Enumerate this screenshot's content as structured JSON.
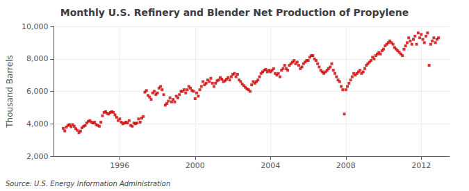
{
  "chart_data": {
    "type": "scatter",
    "title": "Monthly U.S. Refinery and Blender Net Production of Propylene",
    "ylabel": "Thousand Barrels",
    "source": "Source: U.S. Energy Information Administration",
    "color": "#cc0000",
    "marker": "square",
    "grid": true,
    "xlim": [
      1992.5,
      2013.5
    ],
    "xticks": [
      1996,
      2000,
      2004,
      2008,
      2012
    ],
    "ylim": [
      2000,
      10000
    ],
    "yticks": [
      {
        "value": 2000,
        "label": "2,000"
      },
      {
        "value": 4000,
        "label": "4,000"
      },
      {
        "value": 6000,
        "label": "6,000"
      },
      {
        "value": 8000,
        "label": "8,000"
      },
      {
        "value": 10000,
        "label": "10,000"
      }
    ],
    "x": [
      1993,
      1993.0833333333333,
      1993.1666666666667,
      1993.25,
      1993.3333333333333,
      1993.4166666666667,
      1993.5,
      1993.5833333333333,
      1993.6666666666667,
      1993.75,
      1993.8333333333333,
      1993.9166666666667,
      1994,
      1994.0833333333333,
      1994.1666666666667,
      1994.25,
      1994.3333333333333,
      1994.4166666666667,
      1994.5,
      1994.5833333333333,
      1994.6666666666667,
      1994.75,
      1994.8333333333333,
      1994.9166666666667,
      1995,
      1995.0833333333333,
      1995.1666666666667,
      1995.25,
      1995.3333333333333,
      1995.4166666666667,
      1995.5,
      1995.5833333333333,
      1995.6666666666667,
      1995.75,
      1995.8333333333333,
      1995.9166666666667,
      1996,
      1996.0833333333333,
      1996.1666666666667,
      1996.25,
      1996.3333333333333,
      1996.4166666666667,
      1996.5,
      1996.5833333333333,
      1996.6666666666667,
      1996.75,
      1996.8333333333333,
      1996.9166666666667,
      1997,
      1997.0833333333333,
      1997.1666666666667,
      1997.25,
      1997.3333333333333,
      1997.4166666666667,
      1997.5,
      1997.5833333333333,
      1997.6666666666667,
      1997.75,
      1997.8333333333333,
      1997.9166666666667,
      1998,
      1998.0833333333333,
      1998.1666666666667,
      1998.25,
      1998.3333333333333,
      1998.4166666666667,
      1998.5,
      1998.5833333333333,
      1998.6666666666667,
      1998.75,
      1998.8333333333333,
      1998.9166666666667,
      1999,
      1999.0833333333333,
      1999.1666666666667,
      1999.25,
      1999.3333333333333,
      1999.4166666666667,
      1999.5,
      1999.5833333333333,
      1999.6666666666667,
      1999.75,
      1999.8333333333333,
      1999.9166666666667,
      2000,
      2000.0833333333333,
      2000.1666666666667,
      2000.25,
      2000.3333333333333,
      2000.4166666666667,
      2000.5,
      2000.5833333333333,
      2000.6666666666667,
      2000.75,
      2000.8333333333333,
      2000.9166666666667,
      2001,
      2001.0833333333333,
      2001.1666666666667,
      2001.25,
      2001.3333333333333,
      2001.4166666666667,
      2001.5,
      2001.5833333333333,
      2001.6666666666667,
      2001.75,
      2001.8333333333333,
      2001.9166666666667,
      2002,
      2002.0833333333333,
      2002.1666666666667,
      2002.25,
      2002.3333333333333,
      2002.4166666666667,
      2002.5,
      2002.5833333333333,
      2002.6666666666667,
      2002.75,
      2002.8333333333333,
      2002.9166666666667,
      2003,
      2003.0833333333333,
      2003.1666666666667,
      2003.25,
      2003.3333333333333,
      2003.4166666666667,
      2003.5,
      2003.5833333333333,
      2003.6666666666667,
      2003.75,
      2003.8333333333333,
      2003.9166666666667,
      2004,
      2004.0833333333333,
      2004.1666666666667,
      2004.25,
      2004.3333333333333,
      2004.4166666666667,
      2004.5,
      2004.5833333333333,
      2004.6666666666667,
      2004.75,
      2004.8333333333333,
      2004.9166666666667,
      2005,
      2005.0833333333333,
      2005.1666666666667,
      2005.25,
      2005.3333333333333,
      2005.4166666666667,
      2005.5,
      2005.5833333333333,
      2005.6666666666667,
      2005.75,
      2005.8333333333333,
      2005.9166666666667,
      2006,
      2006.0833333333333,
      2006.1666666666667,
      2006.25,
      2006.3333333333333,
      2006.4166666666667,
      2006.5,
      2006.5833333333333,
      2006.6666666666667,
      2006.75,
      2006.8333333333333,
      2006.9166666666667,
      2007,
      2007.0833333333333,
      2007.1666666666667,
      2007.25,
      2007.3333333333333,
      2007.4166666666667,
      2007.5,
      2007.5833333333333,
      2007.6666666666667,
      2007.75,
      2007.8333333333333,
      2007.9166666666667,
      2008,
      2008.0833333333333,
      2008.1666666666667,
      2008.25,
      2008.3333333333333,
      2008.4166666666667,
      2008.5,
      2008.5833333333333,
      2008.6666666666667,
      2008.75,
      2008.8333333333333,
      2008.9166666666667,
      2009,
      2009.0833333333333,
      2009.1666666666667,
      2009.25,
      2009.3333333333333,
      2009.4166666666667,
      2009.5,
      2009.5833333333333,
      2009.6666666666667,
      2009.75,
      2009.8333333333333,
      2009.9166666666667,
      2010,
      2010.0833333333333,
      2010.1666666666667,
      2010.25,
      2010.3333333333333,
      2010.4166666666667,
      2010.5,
      2010.5833333333333,
      2010.6666666666667,
      2010.75,
      2010.8333333333333,
      2010.9166666666667,
      2011,
      2011.0833333333333,
      2011.1666666666667,
      2011.25,
      2011.3333333333333,
      2011.4166666666667,
      2011.5,
      2011.5833333333333,
      2011.6666666666667,
      2011.75,
      2011.8333333333333,
      2011.9166666666667,
      2012,
      2012.0833333333333,
      2012.1666666666667,
      2012.25,
      2012.3333333333333,
      2012.4166666666667,
      2012.5,
      2012.5833333333333,
      2012.6666666666667,
      2012.75,
      2012.8333333333333,
      2012.9166666666667
    ],
    "values": [
      3720,
      3560,
      3800,
      3900,
      3950,
      3820,
      3950,
      3850,
      3700,
      3600,
      3450,
      3550,
      3750,
      3850,
      3900,
      4050,
      4150,
      4200,
      4100,
      4050,
      4100,
      3950,
      3900,
      3850,
      4100,
      4500,
      4700,
      4750,
      4650,
      4600,
      4700,
      4750,
      4700,
      4550,
      4400,
      4200,
      4300,
      4100,
      4000,
      4050,
      4100,
      4050,
      4200,
      3900,
      3850,
      4050,
      4000,
      4050,
      4300,
      4100,
      4350,
      4450,
      5950,
      6050,
      5750,
      5650,
      5500,
      5900,
      6000,
      5800,
      5900,
      6200,
      6300,
      6100,
      5800,
      5150,
      5250,
      5400,
      5600,
      5350,
      5500,
      5350,
      5700,
      5600,
      5800,
      6000,
      6000,
      6100,
      5900,
      6100,
      6300,
      6200,
      6050,
      6000,
      5550,
      5900,
      5700,
      6100,
      6300,
      6600,
      6400,
      6500,
      6700,
      6600,
      6800,
      6500,
      6300,
      6500,
      6650,
      6700,
      6850,
      6750,
      6600,
      6650,
      6750,
      6850,
      6700,
      6900,
      7050,
      7100,
      6900,
      7050,
      6700,
      6600,
      6450,
      6350,
      6250,
      6150,
      6100,
      6000,
      6400,
      6600,
      6500,
      6600,
      6700,
      6900,
      7100,
      7200,
      7300,
      7350,
      7200,
      7300,
      7200,
      7300,
      7400,
      7100,
      7000,
      7100,
      6900,
      7300,
      7400,
      7600,
      7400,
      7300,
      7600,
      7700,
      7800,
      7900,
      7700,
      7800,
      7600,
      7400,
      7500,
      7700,
      7800,
      7900,
      7900,
      8100,
      8200,
      8200,
      8000,
      7900,
      7700,
      7500,
      7300,
      7200,
      7100,
      7200,
      7300,
      7400,
      7500,
      7700,
      7300,
      7100,
      6900,
      6700,
      6600,
      6300,
      6100,
      4600,
      6100,
      6300,
      6500,
      6700,
      6900,
      7100,
      7000,
      7100,
      7200,
      7300,
      7100,
      7200,
      7400,
      7600,
      7700,
      7800,
      7900,
      8100,
      8000,
      8200,
      8300,
      8400,
      8300,
      8500,
      8600,
      8800,
      8900,
      9000,
      9100,
      9000,
      8900,
      8700,
      8600,
      8500,
      8400,
      8300,
      8200,
      8600,
      8800,
      9000,
      9300,
      9100,
      8900,
      9200,
      9400,
      8900,
      9600,
      9300,
      9500,
      9200,
      9000,
      9400,
      9600,
      7600,
      8900,
      9100,
      9300,
      9000,
      9200,
      9300
    ]
  }
}
